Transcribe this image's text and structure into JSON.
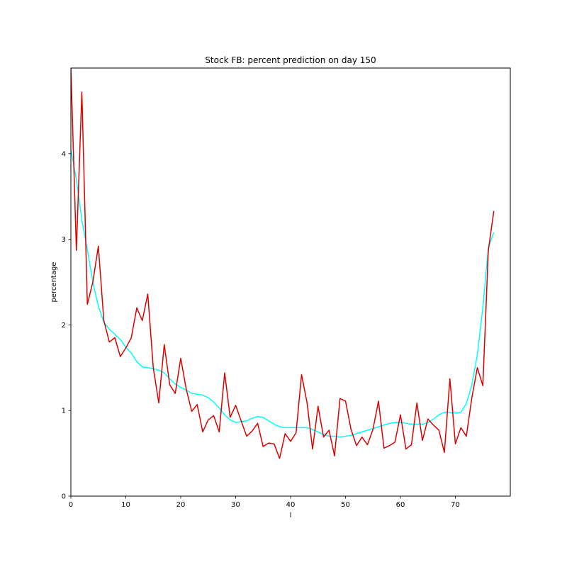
{
  "chart_data": {
    "type": "line",
    "title": "Stock FB: percent prediction on day 150",
    "xlabel": "l",
    "ylabel": "percentage",
    "xlim": [
      0,
      80
    ],
    "ylim": [
      0,
      5
    ],
    "xticks": [
      0,
      10,
      20,
      30,
      40,
      50,
      60,
      70
    ],
    "yticks": [
      0,
      1,
      2,
      3,
      4
    ],
    "grid": false,
    "series": [
      {
        "color": "#ff0000",
        "x": [
          0,
          1,
          2,
          3,
          4,
          5,
          6,
          7,
          8,
          9,
          10,
          11,
          12,
          13,
          14,
          15,
          16,
          17,
          18,
          19,
          20,
          21,
          22,
          23,
          24,
          25,
          26,
          27,
          28,
          29,
          30,
          31,
          32,
          33,
          34,
          35,
          36,
          37,
          38,
          39,
          40,
          41,
          42,
          43,
          44,
          45,
          46,
          47,
          48,
          49,
          50,
          51,
          52,
          53,
          54,
          55,
          56,
          57,
          58,
          59,
          60,
          61,
          62,
          63,
          64,
          65,
          66,
          67,
          68,
          69,
          70,
          71,
          72,
          73,
          74,
          75,
          76,
          77
        ],
        "y": [
          5.0,
          2.87,
          4.72,
          2.24,
          2.5,
          2.92,
          2.05,
          1.8,
          1.85,
          1.63,
          1.73,
          1.85,
          2.2,
          2.05,
          2.36,
          1.5,
          1.09,
          1.77,
          1.3,
          1.2,
          1.61,
          1.25,
          0.99,
          1.07,
          0.75,
          0.89,
          0.94,
          0.75,
          1.44,
          0.92,
          1.06,
          0.88,
          0.7,
          0.76,
          0.85,
          0.58,
          0.62,
          0.61,
          0.44,
          0.73,
          0.64,
          0.74,
          1.42,
          1.09,
          0.55,
          1.05,
          0.69,
          0.77,
          0.47,
          1.14,
          1.11,
          0.78,
          0.59,
          0.69,
          0.6,
          0.78,
          1.11,
          0.56,
          0.59,
          0.63,
          0.95,
          0.55,
          0.6,
          1.09,
          0.65,
          0.9,
          0.83,
          0.77,
          0.51,
          1.37,
          0.61,
          0.8,
          0.7,
          1.15,
          1.5,
          1.29,
          2.87,
          3.33
        ]
      },
      {
        "color": "#00ffff",
        "x": [
          0,
          1,
          2,
          3,
          4,
          5,
          6,
          7,
          8,
          9,
          10,
          11,
          12,
          13,
          14,
          15,
          16,
          17,
          18,
          19,
          20,
          21,
          22,
          23,
          24,
          25,
          26,
          27,
          28,
          29,
          30,
          31,
          32,
          33,
          34,
          35,
          36,
          37,
          38,
          39,
          40,
          41,
          42,
          43,
          44,
          45,
          46,
          47,
          48,
          49,
          50,
          51,
          52,
          53,
          54,
          55,
          56,
          57,
          58,
          59,
          60,
          61,
          62,
          63,
          64,
          65,
          66,
          67,
          68,
          69,
          70,
          71,
          72,
          73,
          74,
          75,
          76,
          77
        ],
        "y": [
          4.05,
          3.7,
          3.22,
          2.88,
          2.5,
          2.22,
          2.03,
          1.95,
          1.89,
          1.83,
          1.74,
          1.67,
          1.57,
          1.51,
          1.5,
          1.49,
          1.47,
          1.44,
          1.37,
          1.31,
          1.27,
          1.24,
          1.2,
          1.19,
          1.18,
          1.15,
          1.1,
          1.03,
          0.95,
          0.89,
          0.86,
          0.87,
          0.88,
          0.91,
          0.93,
          0.92,
          0.88,
          0.84,
          0.81,
          0.8,
          0.8,
          0.8,
          0.8,
          0.8,
          0.78,
          0.75,
          0.72,
          0.7,
          0.7,
          0.69,
          0.7,
          0.71,
          0.73,
          0.75,
          0.77,
          0.79,
          0.81,
          0.83,
          0.85,
          0.86,
          0.86,
          0.85,
          0.84,
          0.84,
          0.84,
          0.86,
          0.9,
          0.95,
          0.98,
          0.98,
          0.97,
          0.98,
          1.08,
          1.3,
          1.65,
          2.2,
          2.9,
          3.08
        ]
      }
    ]
  }
}
